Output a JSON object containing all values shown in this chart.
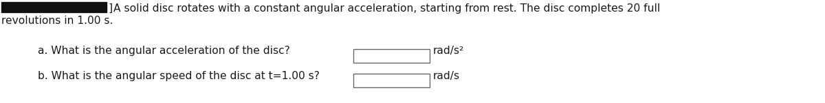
{
  "bg_color": "#ffffff",
  "text_color": "#1a1a1a",
  "figsize": [
    12.0,
    1.51
  ],
  "dpi": 100,
  "fontsize": 11.2,
  "line1": "A solid disc rotates with a constant angular acceleration, starting from rest. The disc completes 20 full",
  "line2": "revolutions in 1.00 s.",
  "bracket": "]",
  "question_a": "a. What is the angular acceleration of the disc?",
  "question_b": "b. What is the angular speed of the disc at τ=1.00 s?",
  "question_b_display": "b. What is the angular speed of the disc at t=1.00 s?",
  "unit_a": "rad/s²",
  "unit_b": "rad/s",
  "redact_color": "#111111"
}
